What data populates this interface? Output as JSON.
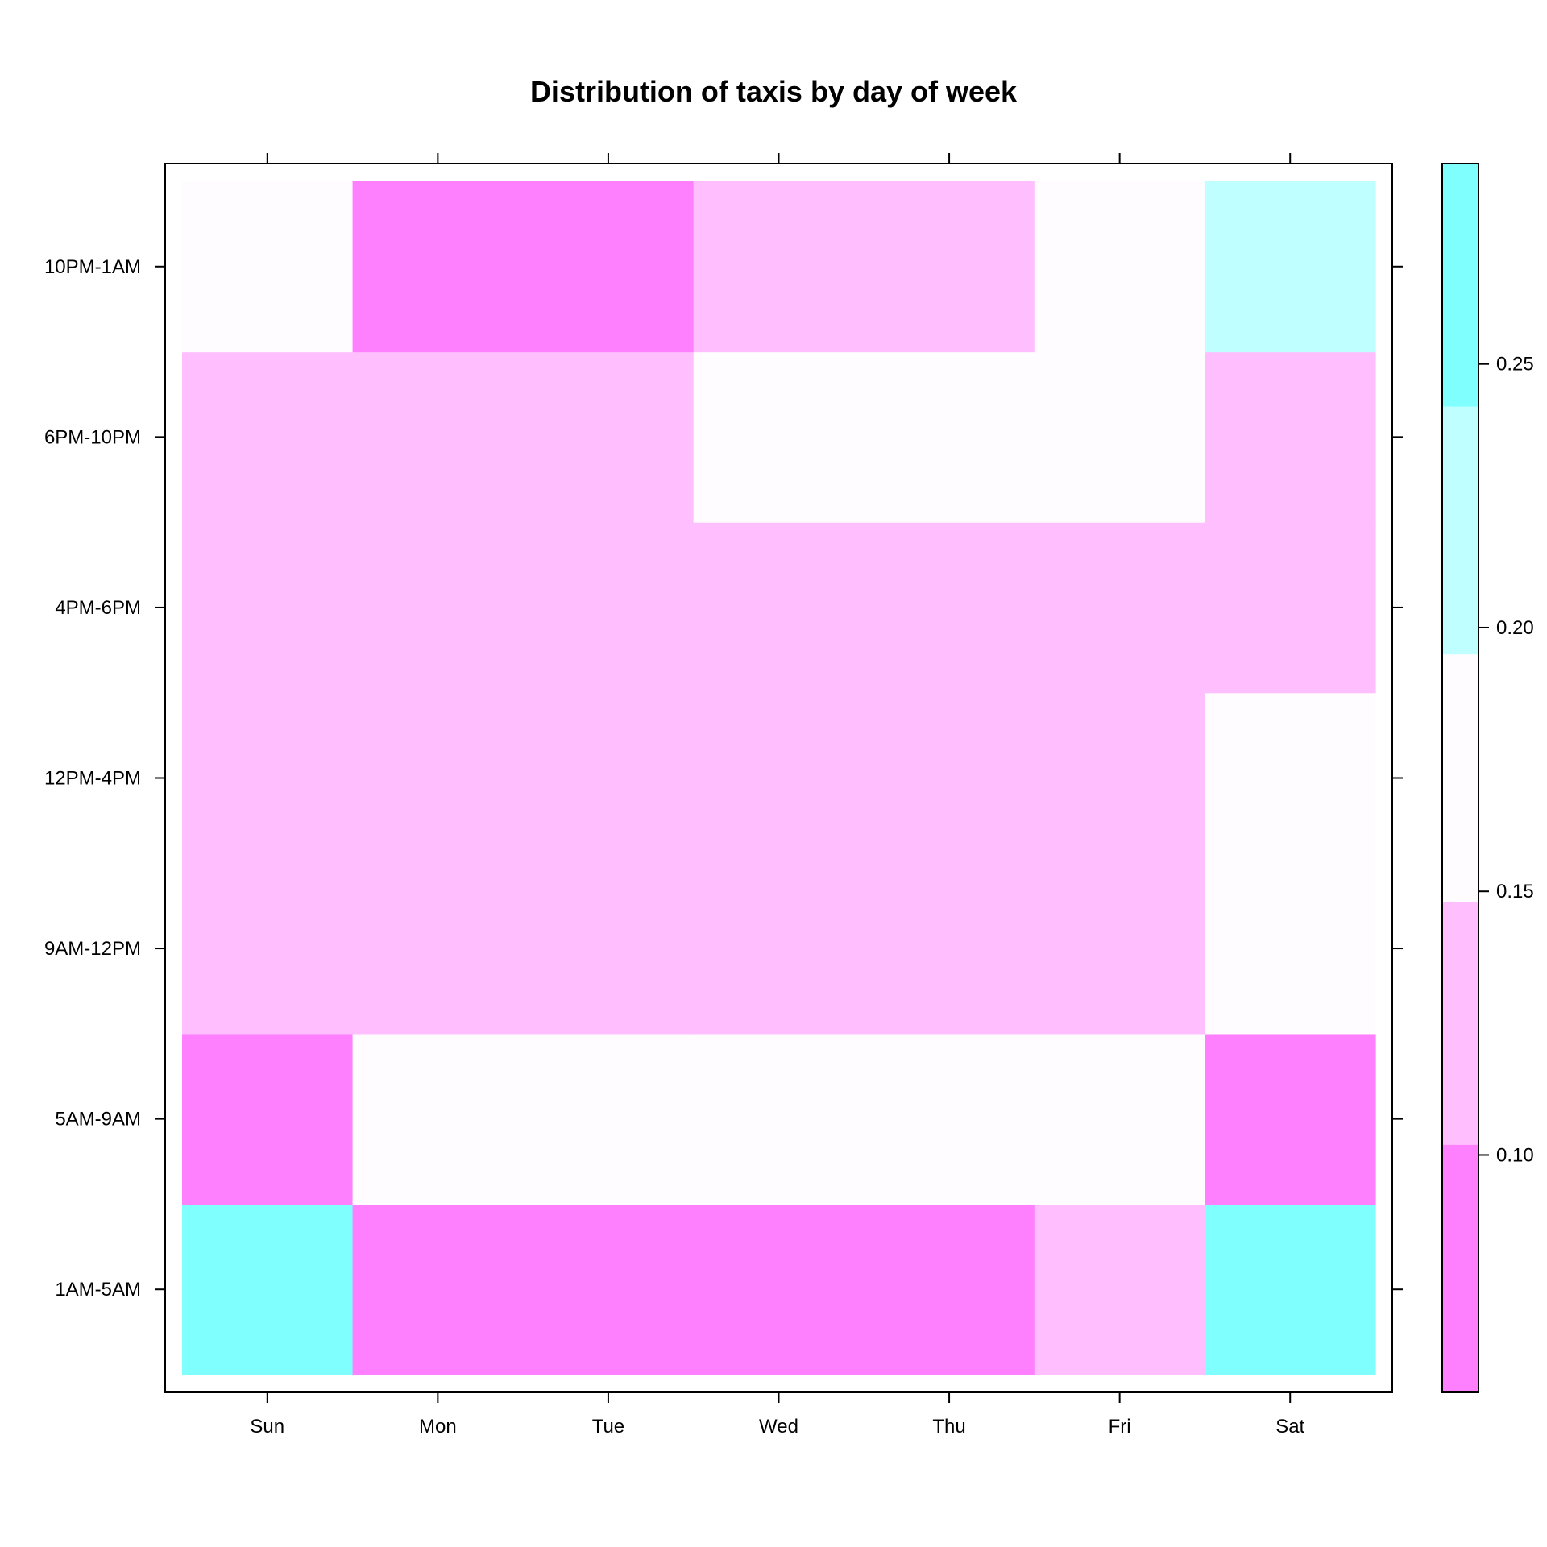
{
  "chart_data": {
    "type": "heatmap",
    "title": "Distribution of taxis by day of week",
    "xlabel": "",
    "ylabel": "",
    "x": [
      "Sun",
      "Mon",
      "Tue",
      "Wed",
      "Thu",
      "Fri",
      "Sat"
    ],
    "y": [
      "1AM-5AM",
      "5AM-9AM",
      "9AM-12PM",
      "12PM-4PM",
      "4PM-6PM",
      "6PM-10PM",
      "10PM-1AM"
    ],
    "values": [
      [
        0.27,
        0.08,
        0.08,
        0.08,
        0.08,
        0.13,
        0.27
      ],
      [
        0.08,
        0.17,
        0.17,
        0.17,
        0.17,
        0.17,
        0.08
      ],
      [
        0.13,
        0.13,
        0.13,
        0.13,
        0.13,
        0.13,
        0.17
      ],
      [
        0.13,
        0.13,
        0.13,
        0.13,
        0.13,
        0.13,
        0.17
      ],
      [
        0.13,
        0.13,
        0.13,
        0.13,
        0.13,
        0.13,
        0.13
      ],
      [
        0.13,
        0.13,
        0.13,
        0.17,
        0.17,
        0.17,
        0.13
      ],
      [
        0.17,
        0.08,
        0.08,
        0.13,
        0.13,
        0.17,
        0.22
      ]
    ],
    "colorbar": {
      "range": [
        0.055,
        0.288
      ],
      "breaks": [
        0.055,
        0.102,
        0.148,
        0.195,
        0.242,
        0.288
      ],
      "colors": [
        "#FF80FF",
        "#FFBFFF",
        "#FFFCFF",
        "#BFFFFF",
        "#80FFFF"
      ],
      "ticks": [
        "0.10",
        "0.15",
        "0.20",
        "0.25"
      ],
      "tick_values": [
        0.1,
        0.15,
        0.2,
        0.25
      ]
    },
    "grid": false,
    "legend": "right colorbar"
  }
}
